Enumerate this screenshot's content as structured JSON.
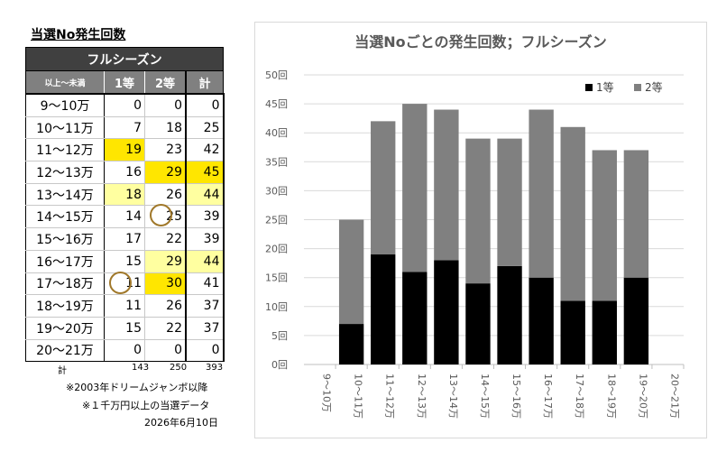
{
  "left_title": "当選No発生回数",
  "table": {
    "main_header": "フルシーズン",
    "col_headers": [
      "以上～未満",
      "1等",
      "2等",
      "計"
    ],
    "rows": [
      {
        "range": "9～10万",
        "first": "0",
        "second": "0",
        "total": "0",
        "hl": [
          "",
          "",
          ""
        ],
        "circle": ""
      },
      {
        "range": "10～11万",
        "first": "7",
        "second": "18",
        "total": "25",
        "hl": [
          "",
          "",
          ""
        ],
        "circle": ""
      },
      {
        "range": "11～12万",
        "first": "19",
        "second": "23",
        "total": "42",
        "hl": [
          "strong",
          "",
          ""
        ],
        "circle": ""
      },
      {
        "range": "12～13万",
        "first": "16",
        "second": "29",
        "total": "45",
        "hl": [
          "",
          "strong",
          "strong"
        ],
        "circle": ""
      },
      {
        "range": "13～14万",
        "first": "18",
        "second": "26",
        "total": "44",
        "hl": [
          "light",
          "",
          "light"
        ],
        "circle": ""
      },
      {
        "range": "14～15万",
        "first": "14",
        "second": "25",
        "total": "39",
        "hl": [
          "",
          "",
          ""
        ],
        "circle": "second"
      },
      {
        "range": "15～16万",
        "first": "17",
        "second": "22",
        "total": "39",
        "hl": [
          "",
          "",
          ""
        ],
        "circle": ""
      },
      {
        "range": "16～17万",
        "first": "15",
        "second": "29",
        "total": "44",
        "hl": [
          "",
          "light",
          "light"
        ],
        "circle": ""
      },
      {
        "range": "17～18万",
        "first": "11",
        "second": "30",
        "total": "41",
        "hl": [
          "",
          "strong",
          ""
        ],
        "circle": "first"
      },
      {
        "range": "18～19万",
        "first": "11",
        "second": "26",
        "total": "37",
        "hl": [
          "",
          "",
          ""
        ],
        "circle": ""
      },
      {
        "range": "19～20万",
        "first": "15",
        "second": "22",
        "total": "37",
        "hl": [
          "",
          "",
          ""
        ],
        "circle": ""
      },
      {
        "range": "20～21万",
        "first": "0",
        "second": "0",
        "total": "0",
        "hl": [
          "",
          "",
          ""
        ],
        "circle": ""
      }
    ],
    "totals": {
      "label": "計",
      "first": "143",
      "second": "250",
      "total": "393"
    }
  },
  "notes": {
    "line1": "※2003年ドリームジャンボ以降",
    "line2": "※１千万円以上の当選データ",
    "date": "2026年6月10日"
  },
  "colors": {
    "series1": "#000000",
    "series2": "#808080",
    "highlight_strong": "#ffe600",
    "highlight_light": "#ffffa0",
    "circle": "#a0782a"
  },
  "chart_data": {
    "type": "bar",
    "stacked": true,
    "title": "当選Noごとの発生回数；フルシーズン",
    "categories": [
      "9～10万",
      "10～11万",
      "11～12万",
      "12～13万",
      "13～14万",
      "14～15万",
      "15～16万",
      "16～17万",
      "17～18万",
      "18～19万",
      "19～20万",
      "20～21万"
    ],
    "series": [
      {
        "name": "1等",
        "values": [
          0,
          7,
          19,
          16,
          18,
          14,
          17,
          15,
          11,
          11,
          15,
          0
        ],
        "color": "#000000"
      },
      {
        "name": "2等",
        "values": [
          0,
          18,
          23,
          29,
          26,
          25,
          22,
          29,
          30,
          26,
          22,
          0
        ],
        "color": "#808080"
      }
    ],
    "ylim": [
      0,
      50
    ],
    "yticks": [
      "0回",
      "5回",
      "10回",
      "15回",
      "20回",
      "25回",
      "30回",
      "35回",
      "40回",
      "45回",
      "50回"
    ],
    "grid": true,
    "legend_position": "top-right"
  }
}
